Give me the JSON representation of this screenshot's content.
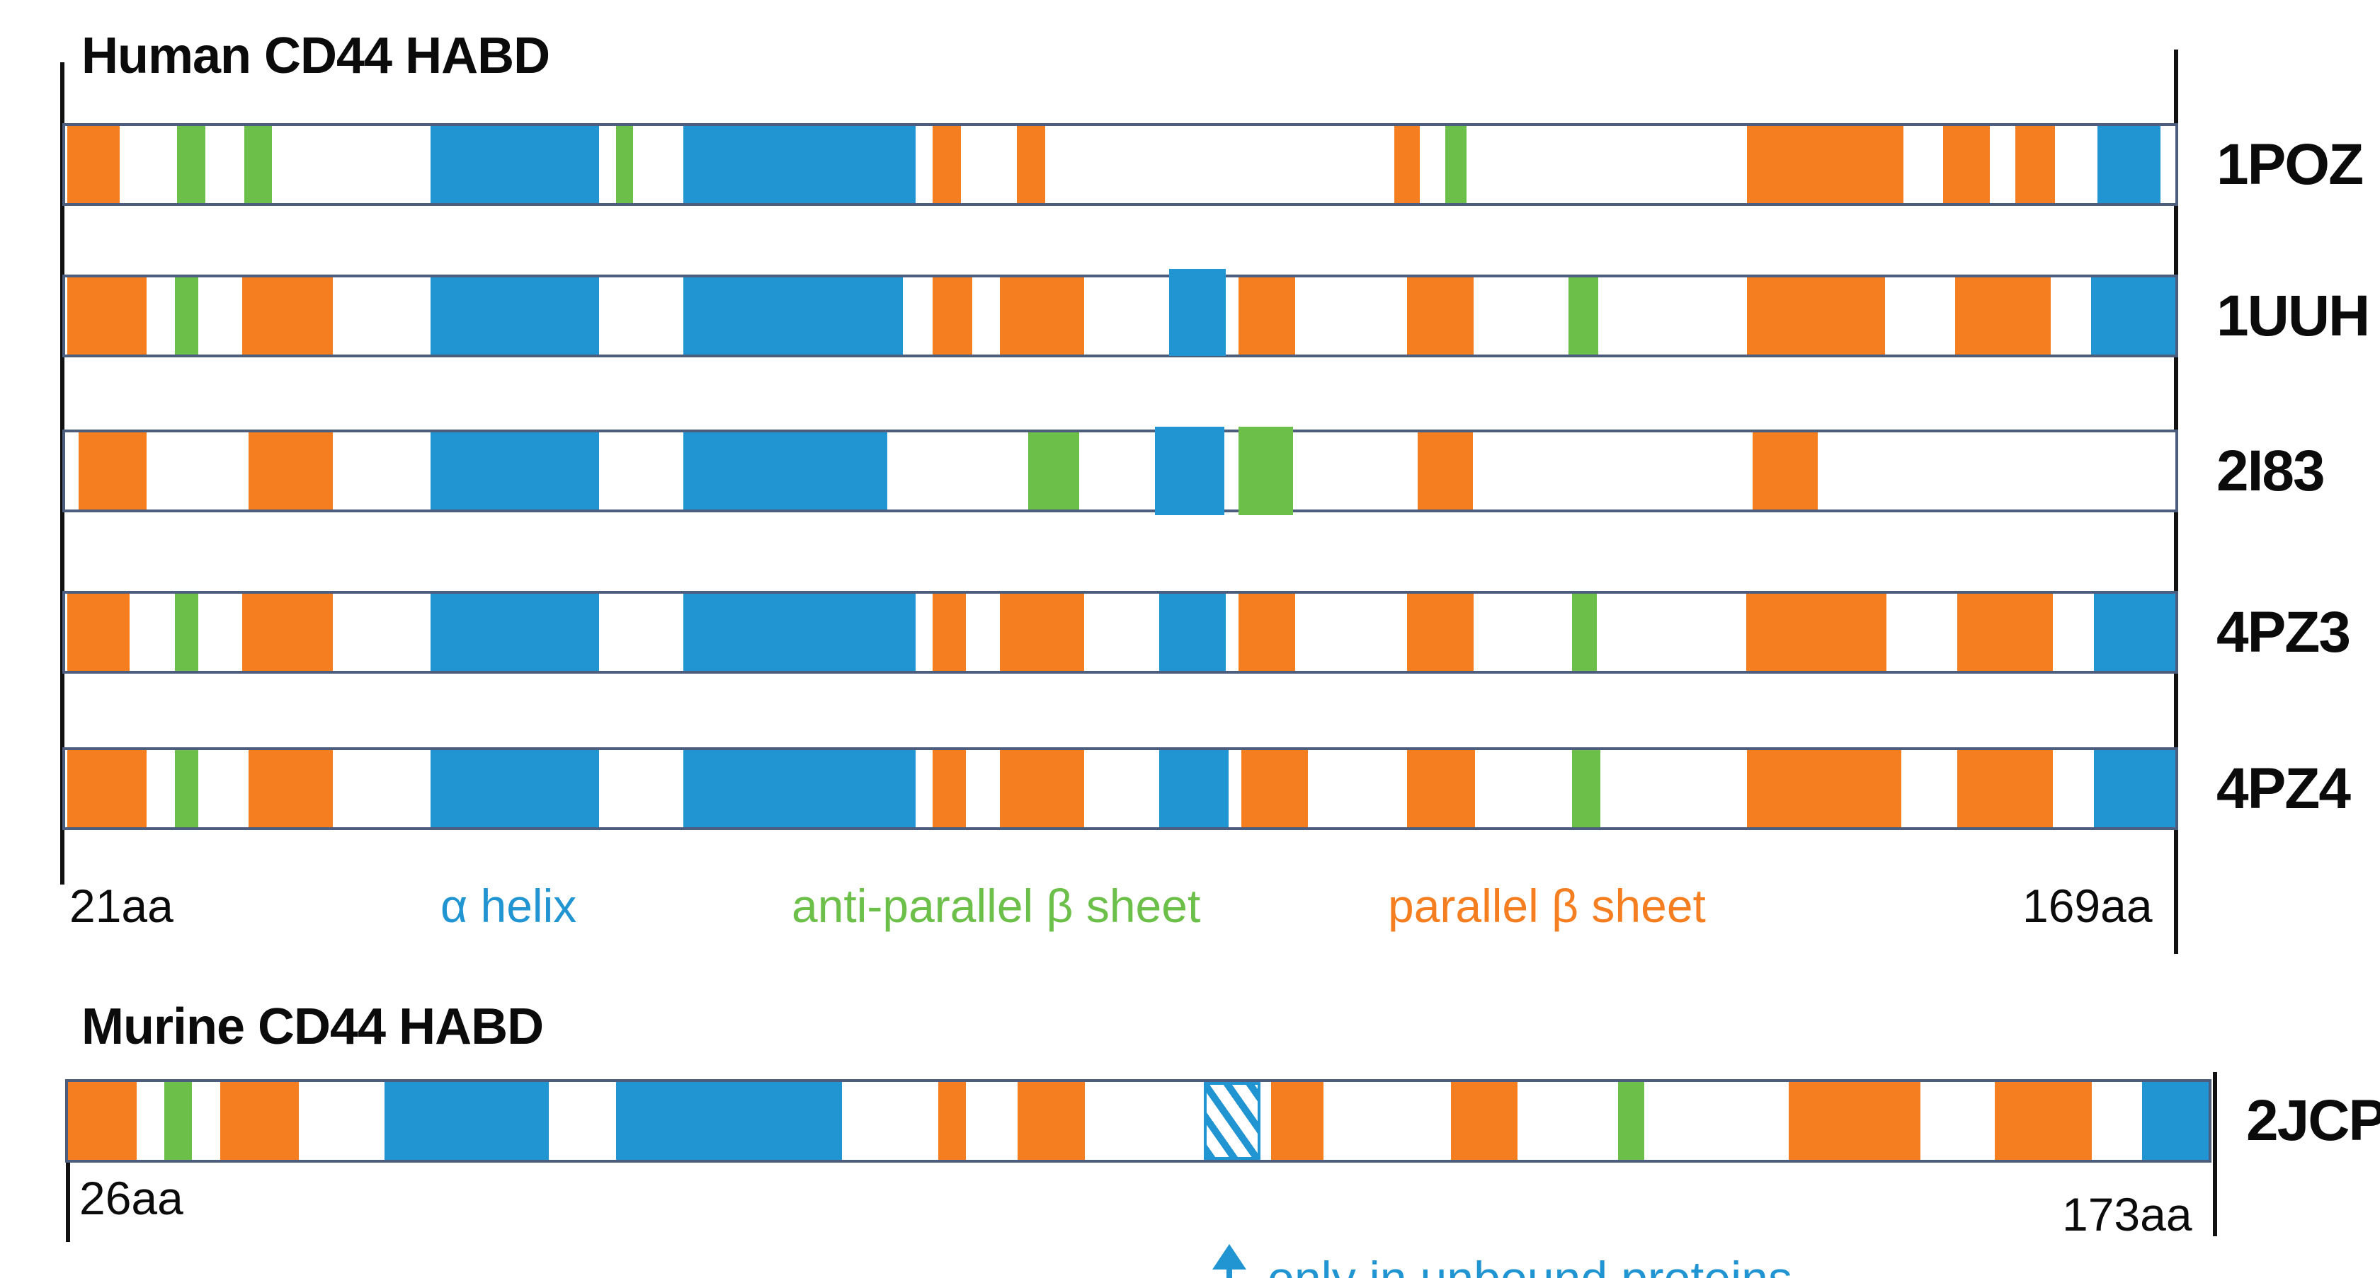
{
  "colors": {
    "helix": "#2095d2",
    "antiparallel": "#6cc04a",
    "parallel": "#f57e20",
    "bar_border": "#4d5d7e",
    "axis_line": "#111111",
    "text": "#0b0b0b"
  },
  "legend": {
    "helix": "α helix",
    "antiparallel": "anti-parallel β sheet",
    "parallel": "parallel β sheet"
  },
  "human": {
    "title": "Human CD44 HABD",
    "start_label": "21aa",
    "end_label": "169aa",
    "rows": [
      {
        "label": "1POZ",
        "segments": [
          {
            "t": "parallel",
            "s": 0.1,
            "w": 2.5
          },
          {
            "t": "antiparallel",
            "s": 5.3,
            "w": 1.35
          },
          {
            "t": "antiparallel",
            "s": 8.5,
            "w": 1.3
          },
          {
            "t": "helix",
            "s": 17.3,
            "w": 8.0
          },
          {
            "t": "antiparallel",
            "s": 26.1,
            "w": 0.8
          },
          {
            "t": "helix",
            "s": 29.3,
            "w": 11.0
          },
          {
            "t": "parallel",
            "s": 41.1,
            "w": 1.35
          },
          {
            "t": "parallel",
            "s": 45.1,
            "w": 1.35
          },
          {
            "t": "parallel",
            "s": 63.0,
            "w": 1.2
          },
          {
            "t": "antiparallel",
            "s": 65.4,
            "w": 1.0
          },
          {
            "t": "parallel",
            "s": 79.7,
            "w": 7.4
          },
          {
            "t": "parallel",
            "s": 89.0,
            "w": 2.2
          },
          {
            "t": "parallel",
            "s": 92.4,
            "w": 1.9
          },
          {
            "t": "helix",
            "s": 96.3,
            "w": 3.0
          }
        ]
      },
      {
        "label": "1UUH",
        "segments": [
          {
            "t": "parallel",
            "s": 0.1,
            "w": 3.75
          },
          {
            "t": "antiparallel",
            "s": 5.2,
            "w": 1.1
          },
          {
            "t": "parallel",
            "s": 8.4,
            "w": 4.3
          },
          {
            "t": "helix",
            "s": 17.3,
            "w": 8.0
          },
          {
            "t": "helix",
            "s": 29.3,
            "w": 10.4
          },
          {
            "t": "parallel",
            "s": 41.1,
            "w": 1.9
          },
          {
            "t": "parallel",
            "s": 44.3,
            "w": 4.0
          },
          {
            "t": "helix",
            "s": 52.3,
            "w": 2.7,
            "raise": true
          },
          {
            "t": "parallel",
            "s": 55.6,
            "w": 2.7
          },
          {
            "t": "parallel",
            "s": 63.6,
            "w": 3.15
          },
          {
            "t": "antiparallel",
            "s": 71.25,
            "w": 1.4
          },
          {
            "t": "parallel",
            "s": 79.7,
            "w": 6.55
          },
          {
            "t": "parallel",
            "s": 89.55,
            "w": 4.55
          },
          {
            "t": "helix",
            "s": 96.0,
            "w": 4.0
          }
        ]
      },
      {
        "label": "2I83",
        "segments": [
          {
            "t": "parallel",
            "s": 0.65,
            "w": 3.2
          },
          {
            "t": "parallel",
            "s": 8.7,
            "w": 4.0
          },
          {
            "t": "helix",
            "s": 17.3,
            "w": 8.0
          },
          {
            "t": "helix",
            "s": 29.3,
            "w": 9.65
          },
          {
            "t": "antiparallel",
            "s": 45.65,
            "w": 2.4
          },
          {
            "t": "helix",
            "s": 51.65,
            "w": 3.3,
            "bleed": true
          },
          {
            "t": "antiparallel",
            "s": 55.6,
            "w": 2.6,
            "bleed": true
          },
          {
            "t": "parallel",
            "s": 64.1,
            "w": 2.6
          },
          {
            "t": "parallel",
            "s": 79.95,
            "w": 3.1
          }
        ]
      },
      {
        "label": "4PZ3",
        "segments": [
          {
            "t": "parallel",
            "s": 0.1,
            "w": 2.95
          },
          {
            "t": "antiparallel",
            "s": 5.2,
            "w": 1.1
          },
          {
            "t": "parallel",
            "s": 8.4,
            "w": 4.3
          },
          {
            "t": "helix",
            "s": 17.3,
            "w": 8.0
          },
          {
            "t": "helix",
            "s": 29.3,
            "w": 11.0
          },
          {
            "t": "parallel",
            "s": 41.1,
            "w": 1.6
          },
          {
            "t": "parallel",
            "s": 44.3,
            "w": 4.0
          },
          {
            "t": "helix",
            "s": 51.85,
            "w": 3.15
          },
          {
            "t": "parallel",
            "s": 55.6,
            "w": 2.7
          },
          {
            "t": "parallel",
            "s": 63.6,
            "w": 3.15
          },
          {
            "t": "antiparallel",
            "s": 71.4,
            "w": 1.2
          },
          {
            "t": "parallel",
            "s": 79.65,
            "w": 6.65
          },
          {
            "t": "parallel",
            "s": 89.65,
            "w": 4.55
          },
          {
            "t": "helix",
            "s": 96.15,
            "w": 3.85
          }
        ]
      },
      {
        "label": "4PZ4",
        "segments": [
          {
            "t": "parallel",
            "s": 0.1,
            "w": 3.75
          },
          {
            "t": "antiparallel",
            "s": 5.2,
            "w": 1.1
          },
          {
            "t": "parallel",
            "s": 8.7,
            "w": 4.0
          },
          {
            "t": "helix",
            "s": 17.3,
            "w": 8.0
          },
          {
            "t": "helix",
            "s": 29.3,
            "w": 11.0
          },
          {
            "t": "parallel",
            "s": 41.1,
            "w": 1.6
          },
          {
            "t": "parallel",
            "s": 44.3,
            "w": 4.0
          },
          {
            "t": "helix",
            "s": 51.85,
            "w": 3.3
          },
          {
            "t": "parallel",
            "s": 55.75,
            "w": 3.15
          },
          {
            "t": "parallel",
            "s": 63.6,
            "w": 3.2
          },
          {
            "t": "antiparallel",
            "s": 71.4,
            "w": 1.35
          },
          {
            "t": "parallel",
            "s": 79.7,
            "w": 7.3
          },
          {
            "t": "parallel",
            "s": 89.65,
            "w": 4.55
          },
          {
            "t": "helix",
            "s": 96.15,
            "w": 3.85
          }
        ]
      }
    ]
  },
  "murine": {
    "title": "Murine CD44 HABD",
    "start_label": "26aa",
    "end_label": "173aa",
    "row": {
      "label": "2JCP",
      "segments": [
        {
          "t": "parallel",
          "s": 0.0,
          "w": 3.2
        },
        {
          "t": "antiparallel",
          "s": 4.5,
          "w": 1.3
        },
        {
          "t": "parallel",
          "s": 7.1,
          "w": 3.7
        },
        {
          "t": "helix",
          "s": 14.8,
          "w": 7.65
        },
        {
          "t": "helix",
          "s": 25.6,
          "w": 10.55
        },
        {
          "t": "parallel",
          "s": 40.65,
          "w": 1.3
        },
        {
          "t": "parallel",
          "s": 44.35,
          "w": 3.15
        },
        {
          "t": "hatch",
          "s": 53.05,
          "w": 2.65
        },
        {
          "t": "parallel",
          "s": 56.2,
          "w": 2.45
        },
        {
          "t": "parallel",
          "s": 64.6,
          "w": 3.1
        },
        {
          "t": "antiparallel",
          "s": 72.4,
          "w": 1.25
        },
        {
          "t": "parallel",
          "s": 80.4,
          "w": 6.15
        },
        {
          "t": "parallel",
          "s": 90.0,
          "w": 4.55
        },
        {
          "t": "helix",
          "s": 96.9,
          "w": 3.1
        }
      ]
    },
    "annotation": {
      "arrow_icon": "up-arrow",
      "text": "only in unbound proteins"
    }
  }
}
